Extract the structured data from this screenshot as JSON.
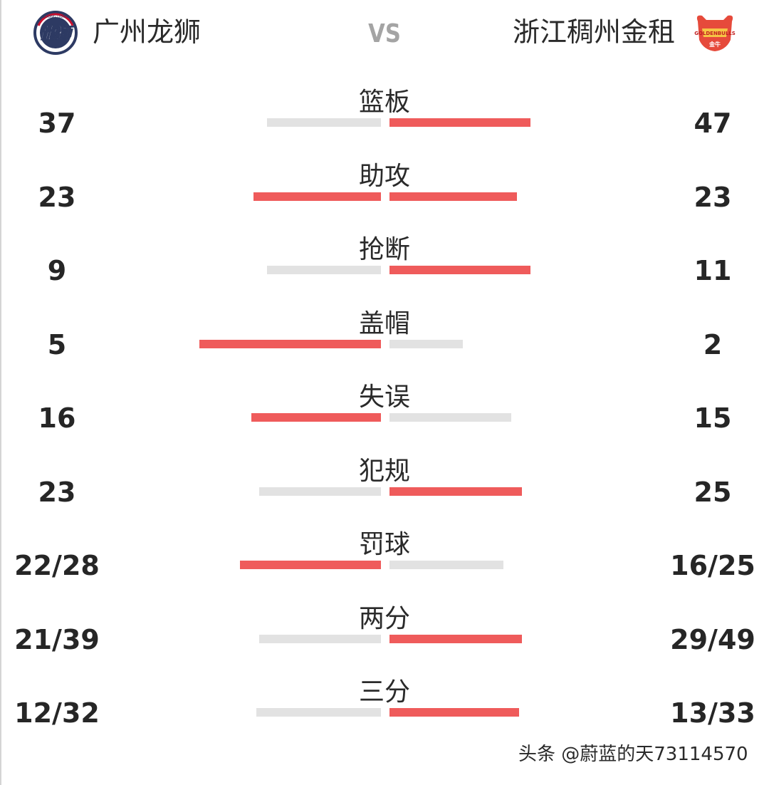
{
  "header": {
    "home_team": "广州龙狮",
    "away_team": "浙江稠州金租",
    "vs": "VS",
    "home_logo": {
      "icon": "guangzhou-loong-lions-logo",
      "text": "龍獅",
      "ring_text": "LOONG LIONS"
    },
    "away_logo": {
      "icon": "zhejiang-golden-bulls-logo",
      "text": "GOLDENBULLS",
      "sub_text": "金牛"
    }
  },
  "colors": {
    "winner_bar": "#ef5b5b",
    "loser_bar": "#e2e2e2"
  },
  "stats": [
    {
      "label": "篮板",
      "home": "37",
      "away": "47",
      "home_bar": 0.42,
      "away_bar": 0.52,
      "home_lead": false,
      "away_lead": true
    },
    {
      "label": "助攻",
      "home": "23",
      "away": "23",
      "home_bar": 0.47,
      "away_bar": 0.47,
      "home_lead": true,
      "away_lead": true
    },
    {
      "label": "抢断",
      "home": "9",
      "away": "11",
      "home_bar": 0.42,
      "away_bar": 0.52,
      "home_lead": false,
      "away_lead": true
    },
    {
      "label": "盖帽",
      "home": "5",
      "away": "2",
      "home_bar": 0.67,
      "away_bar": 0.27,
      "home_lead": true,
      "away_lead": false
    },
    {
      "label": "失误",
      "home": "16",
      "away": "15",
      "home_bar": 0.48,
      "away_bar": 0.45,
      "home_lead": true,
      "away_lead": false
    },
    {
      "label": "犯规",
      "home": "23",
      "away": "25",
      "home_bar": 0.45,
      "away_bar": 0.49,
      "home_lead": false,
      "away_lead": true
    },
    {
      "label": "罚球",
      "home": "22/28",
      "away": "16/25",
      "home_bar": 0.52,
      "away_bar": 0.42,
      "home_lead": true,
      "away_lead": false
    },
    {
      "label": "两分",
      "home": "21/39",
      "away": "29/49",
      "home_bar": 0.45,
      "away_bar": 0.49,
      "home_lead": false,
      "away_lead": true
    },
    {
      "label": "三分",
      "home": "12/32",
      "away": "13/33",
      "home_bar": 0.46,
      "away_bar": 0.48,
      "home_lead": false,
      "away_lead": true
    }
  ],
  "watermark": "头条 @蔚蓝的天73114570"
}
